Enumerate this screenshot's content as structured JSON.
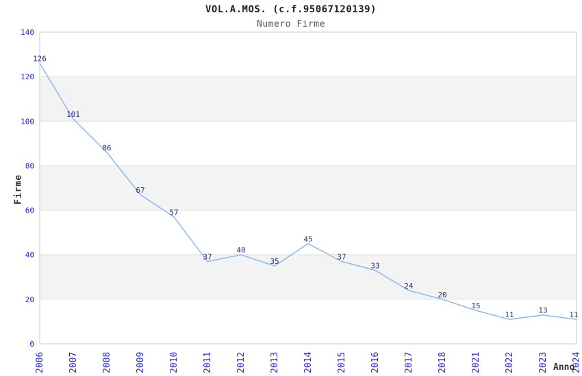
{
  "chart_data": {
    "type": "line",
    "title": "VOL.A.MOS. (c.f.95067120139)",
    "subtitle": "Numero Firme",
    "xlabel": "Anno",
    "ylabel": "Firme",
    "categories": [
      "2006",
      "2007",
      "2008",
      "2009",
      "2010",
      "2011",
      "2012",
      "2013",
      "2014",
      "2015",
      "2016",
      "2017",
      "2018",
      "2021",
      "2022",
      "2023",
      "2024"
    ],
    "values": [
      126,
      101,
      86,
      67,
      57,
      37,
      40,
      35,
      45,
      37,
      33,
      24,
      20,
      15,
      11,
      13,
      11
    ],
    "ylim": [
      0,
      140
    ],
    "ytick_interval": 20,
    "grid": "horizontal",
    "legend": "none",
    "data_labels": true,
    "alternating_bands": true,
    "colors": {
      "line": "#8ab9e9",
      "tick_label": "#2727cf",
      "data_label": "#2d2d86",
      "band": "#f3f3f3",
      "grid_line": "#e2e2e2",
      "plot_border": "#c9c9c9",
      "title": "#222222",
      "subtitle": "#555555",
      "axis_title": "#333333",
      "background": "#ffffff"
    }
  }
}
